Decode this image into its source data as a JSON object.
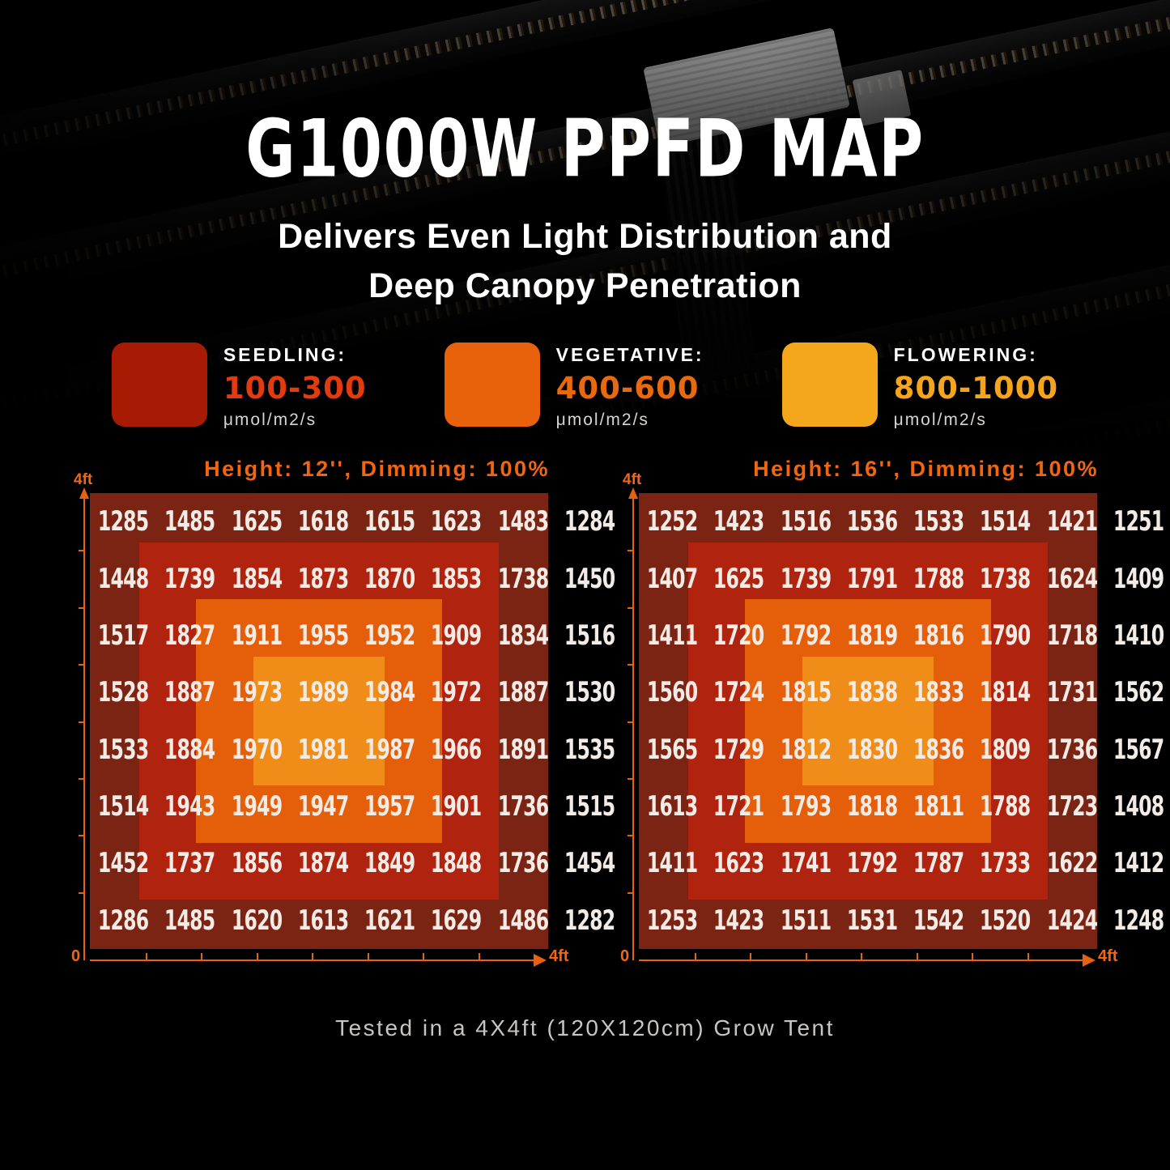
{
  "title": "G1000W PPFD MAP",
  "subtitle": {
    "line1": "Delivers Even Light Distribution and",
    "line2": "Deep Canopy Penetration"
  },
  "legend": {
    "items": [
      {
        "label": "SEEDLING:",
        "range": "100-300",
        "unit": "μmol/m2/s",
        "swatch_color": "#a71b04",
        "range_color": "#e33b0e"
      },
      {
        "label": "VEGETATIVE:",
        "range": "400-600",
        "unit": "μmol/m2/s",
        "swatch_color": "#e8620c",
        "range_color": "#e8690e"
      },
      {
        "label": "FLOWERING:",
        "range": "800-1000",
        "unit": "μmol/m2/s",
        "swatch_color": "#f5a71b",
        "range_color": "#f5a51d"
      }
    ]
  },
  "chart_data": [
    {
      "type": "heatmap",
      "title": "Height: 12'', Dimming: 100%",
      "y_axis_label": "4ft",
      "x_axis_start": "0",
      "x_axis_end": "4ft",
      "rows": 8,
      "cols": 8,
      "values": [
        [
          1285,
          1485,
          1625,
          1618,
          1615,
          1623,
          1483,
          1284
        ],
        [
          1448,
          1739,
          1854,
          1873,
          1870,
          1853,
          1738,
          1450
        ],
        [
          1517,
          1827,
          1911,
          1955,
          1952,
          1909,
          1834,
          1516
        ],
        [
          1528,
          1887,
          1973,
          1989,
          1984,
          1972,
          1887,
          1530
        ],
        [
          1533,
          1884,
          1970,
          1981,
          1987,
          1966,
          1891,
          1535
        ],
        [
          1514,
          1943,
          1949,
          1947,
          1957,
          1901,
          1736,
          1515
        ],
        [
          1452,
          1737,
          1856,
          1874,
          1849,
          1848,
          1736,
          1454
        ],
        [
          1286,
          1485,
          1620,
          1613,
          1621,
          1629,
          1486,
          1282
        ]
      ]
    },
    {
      "type": "heatmap",
      "title": "Height: 16'', Dimming: 100%",
      "y_axis_label": "4ft",
      "x_axis_start": "0",
      "x_axis_end": "4ft",
      "rows": 8,
      "cols": 8,
      "values": [
        [
          1252,
          1423,
          1516,
          1536,
          1533,
          1514,
          1421,
          1251
        ],
        [
          1407,
          1625,
          1739,
          1791,
          1788,
          1738,
          1624,
          1409
        ],
        [
          1411,
          1720,
          1792,
          1819,
          1816,
          1790,
          1718,
          1410
        ],
        [
          1560,
          1724,
          1815,
          1838,
          1833,
          1814,
          1731,
          1562
        ],
        [
          1565,
          1729,
          1812,
          1830,
          1836,
          1809,
          1736,
          1567
        ],
        [
          1613,
          1721,
          1793,
          1818,
          1811,
          1788,
          1723,
          1408
        ],
        [
          1411,
          1623,
          1741,
          1792,
          1787,
          1733,
          1622,
          1412
        ],
        [
          1253,
          1423,
          1511,
          1531,
          1542,
          1520,
          1424,
          1248
        ]
      ]
    }
  ],
  "footer": "Tested in a 4X4ft (120X120cm) Grow Tent",
  "colors": {
    "zone_outer": "#7c2414",
    "zone_mid": "#b0240f",
    "zone_inner": "#e55f0b",
    "zone_center": "#ef8d18",
    "axis": "#e8620e",
    "header_text": "#f4660e",
    "value_text": "#f3ece6",
    "footer_text": "#c7c5c3"
  }
}
